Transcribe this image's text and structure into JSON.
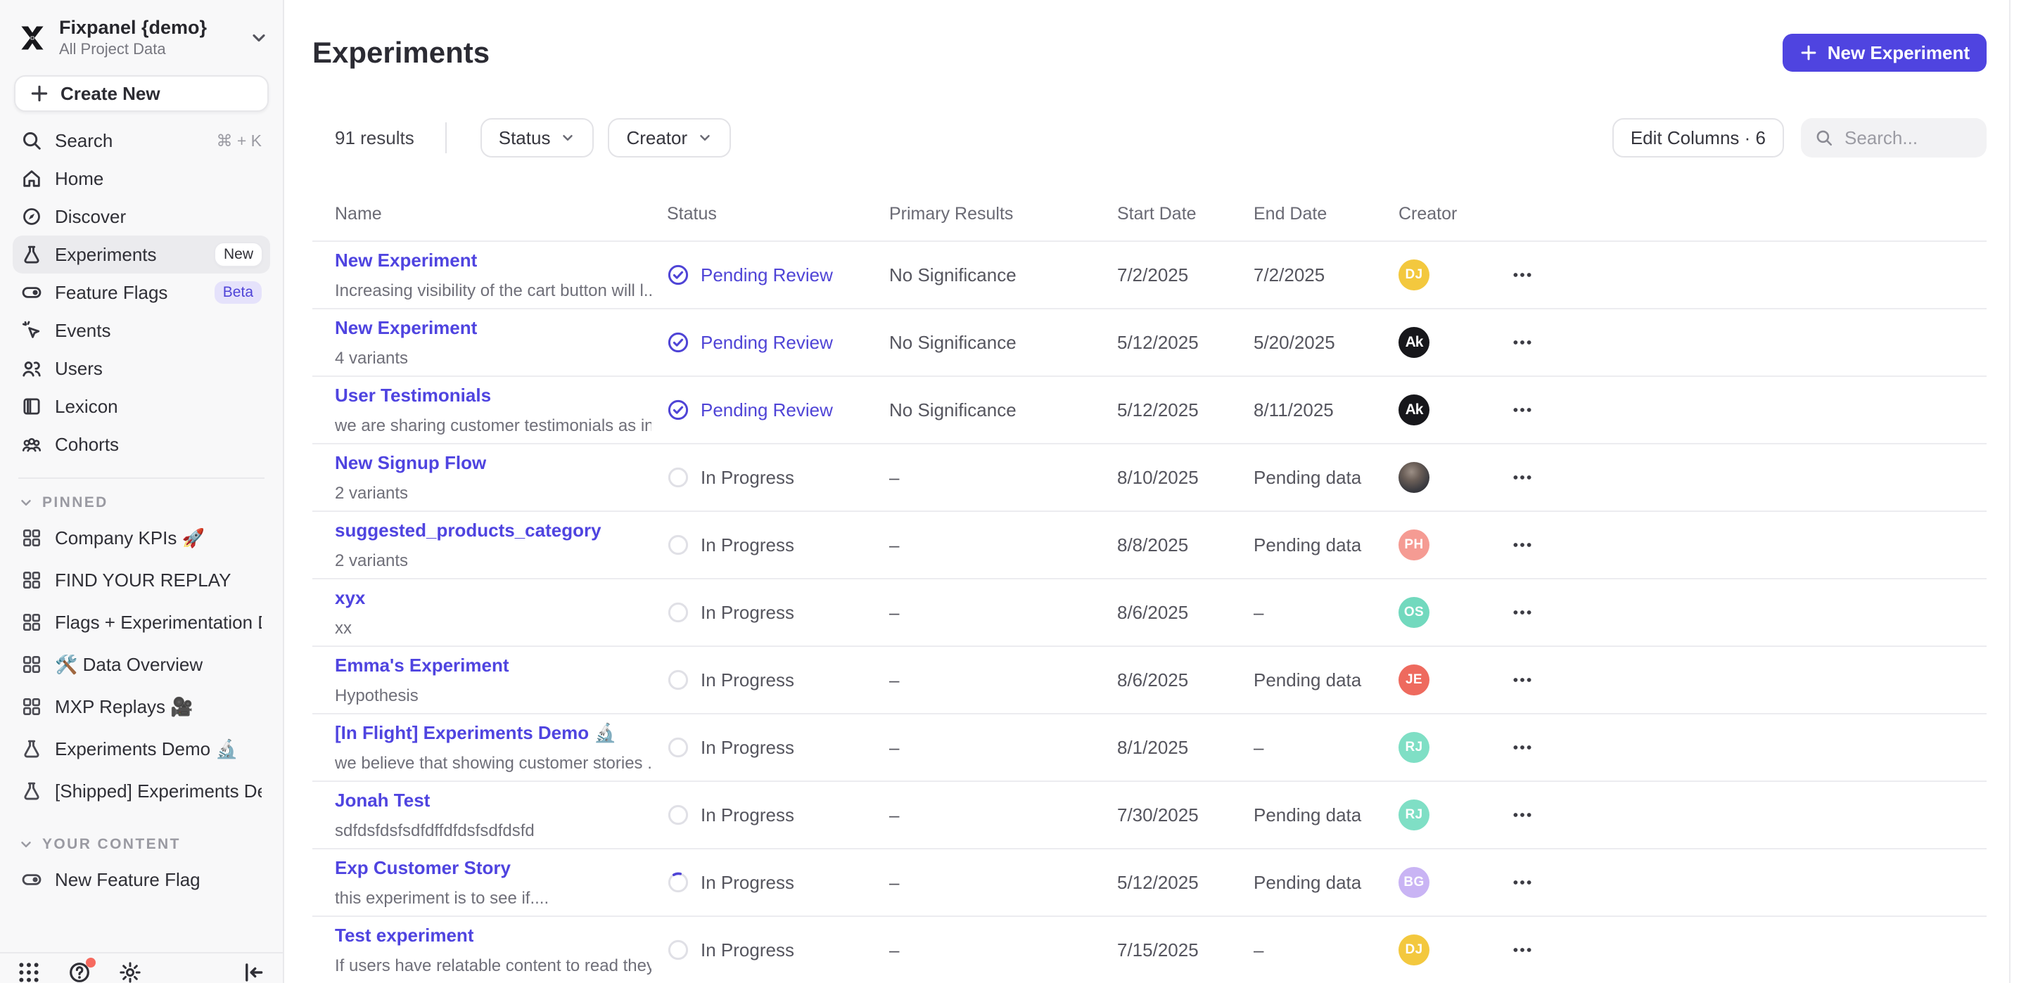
{
  "app": {
    "workspace_name": "Fixpanel {demo}",
    "project_name": "All Project Data",
    "logo_icon": "fixpanel-x-logo"
  },
  "colors": {
    "accent_purple": "#4F44E0",
    "link_purple": "#4F44DC",
    "status_pending_purple": "#4F44D6",
    "sidebar_bg": "#F8F8F9",
    "badge_beta_bg": "#E5E2FB",
    "notification_dot_red": "#F66A5F"
  },
  "sidebar": {
    "create_new_label": "Create New",
    "nav": [
      {
        "label": "Search",
        "icon": "search",
        "shortcut": "⌘ + K"
      },
      {
        "label": "Home",
        "icon": "home"
      },
      {
        "label": "Discover",
        "icon": "discover"
      },
      {
        "label": "Experiments",
        "icon": "flask",
        "badge": "New",
        "badge_variant": "light",
        "active": true
      },
      {
        "label": "Feature Flags",
        "icon": "toggle",
        "badge": "Beta",
        "badge_variant": "purple"
      },
      {
        "label": "Events",
        "icon": "cursor-click"
      },
      {
        "label": "Users",
        "icon": "users"
      },
      {
        "label": "Lexicon",
        "icon": "book-panel"
      },
      {
        "label": "Cohorts",
        "icon": "cohorts"
      }
    ],
    "sections": [
      {
        "title": "PINNED",
        "items": [
          {
            "label": "Company KPIs 🚀",
            "icon": "board"
          },
          {
            "label": "FIND YOUR REPLAY",
            "icon": "board"
          },
          {
            "label": "Flags + Experimentation Demo ,",
            "icon": "board"
          },
          {
            "label": "🛠️ Data Overview",
            "icon": "board"
          },
          {
            "label": "MXP Replays 🎥",
            "icon": "board"
          },
          {
            "label": "Experiments Demo 🔬",
            "icon": "flask"
          },
          {
            "label": "[Shipped] Experiments Demo 🖊️",
            "icon": "flask"
          }
        ]
      },
      {
        "title": "YOUR CONTENT",
        "items": [
          {
            "label": "New Feature Flag",
            "icon": "toggle"
          }
        ]
      }
    ],
    "footer_icons": [
      {
        "name": "apps",
        "notification": false
      },
      {
        "name": "help",
        "notification": true
      },
      {
        "name": "settings",
        "notification": false
      }
    ],
    "collapse_icon": "collapse-sidebar"
  },
  "header": {
    "title": "Experiments",
    "new_experiment_label": "New Experiment"
  },
  "toolbar": {
    "results_count": "91 results",
    "filters": [
      {
        "label": "Status"
      },
      {
        "label": "Creator"
      }
    ],
    "edit_columns_label": "Edit Columns · 6",
    "search_placeholder": "Search..."
  },
  "table": {
    "columns": [
      "Name",
      "Status",
      "Primary Results",
      "Start Date",
      "End Date",
      "Creator"
    ],
    "rows": [
      {
        "name": "New Experiment",
        "desc": "Increasing visibility of the cart button will l...",
        "status": "Pending Review",
        "state": "pending",
        "primary": "No Significance",
        "start": "7/2/2025",
        "end": "7/2/2025",
        "avatar": {
          "type": "initials",
          "text": "DJ",
          "bg": "#F3C83E"
        }
      },
      {
        "name": "New Experiment",
        "desc": "4 variants",
        "status": "Pending Review",
        "state": "pending",
        "primary": "No Significance",
        "start": "5/12/2025",
        "end": "5/20/2025",
        "avatar": {
          "type": "logo",
          "text": "Ak",
          "bg": "#17171B"
        }
      },
      {
        "name": "User Testimonials",
        "desc": "we are sharing customer testimonials as in...",
        "status": "Pending Review",
        "state": "pending",
        "primary": "No Significance",
        "start": "5/12/2025",
        "end": "8/11/2025",
        "avatar": {
          "type": "logo",
          "text": "Ak",
          "bg": "#17171B"
        }
      },
      {
        "name": "New Signup Flow",
        "desc": "2 variants",
        "status": "In Progress",
        "state": "progress",
        "primary": "–",
        "start": "8/10/2025",
        "end": "Pending data",
        "avatar": {
          "type": "photo",
          "text": ""
        }
      },
      {
        "name": "suggested_products_category",
        "desc": "2 variants",
        "status": "In Progress",
        "state": "progress",
        "primary": "–",
        "start": "8/8/2025",
        "end": "Pending data",
        "avatar": {
          "type": "initials",
          "text": "PH",
          "bg": "#F59B93"
        }
      },
      {
        "name": "xyx",
        "desc": "xx",
        "status": "In Progress",
        "state": "progress",
        "primary": "–",
        "start": "8/6/2025",
        "end": "–",
        "avatar": {
          "type": "initials",
          "text": "OS",
          "bg": "#72D9BE"
        }
      },
      {
        "name": "Emma's Experiment",
        "desc": "Hypothesis",
        "status": "In Progress",
        "state": "progress",
        "primary": "–",
        "start": "8/6/2025",
        "end": "Pending data",
        "avatar": {
          "type": "initials",
          "text": "JE",
          "bg": "#EE6A5E"
        }
      },
      {
        "name": "[In Flight] Experiments Demo 🔬",
        "desc": "we believe that showing customer stories ...",
        "status": "In Progress",
        "state": "progress",
        "primary": "–",
        "start": "8/1/2025",
        "end": "–",
        "avatar": {
          "type": "initials",
          "text": "RJ",
          "bg": "#7FDFC5"
        }
      },
      {
        "name": "Jonah Test",
        "desc": "sdfdsfdsfsdfdffdfdsfsdfdsfd",
        "status": "In Progress",
        "state": "progress",
        "primary": "–",
        "start": "7/30/2025",
        "end": "Pending data",
        "avatar": {
          "type": "initials",
          "text": "RJ",
          "bg": "#7FDFC5"
        }
      },
      {
        "name": "Exp Customer Story",
        "desc": "this experiment is to see if....",
        "status": "In Progress",
        "state": "progress-active",
        "primary": "–",
        "start": "5/12/2025",
        "end": "Pending data",
        "avatar": {
          "type": "initials",
          "text": "BG",
          "bg": "#C9B4F4"
        }
      },
      {
        "name": "Test experiment",
        "desc": "If users have relatable content to read they...",
        "status": "In Progress",
        "state": "progress",
        "primary": "–",
        "start": "7/15/2025",
        "end": "–",
        "avatar": {
          "type": "initials",
          "text": "DJ",
          "bg": "#F3C83E"
        }
      }
    ]
  }
}
